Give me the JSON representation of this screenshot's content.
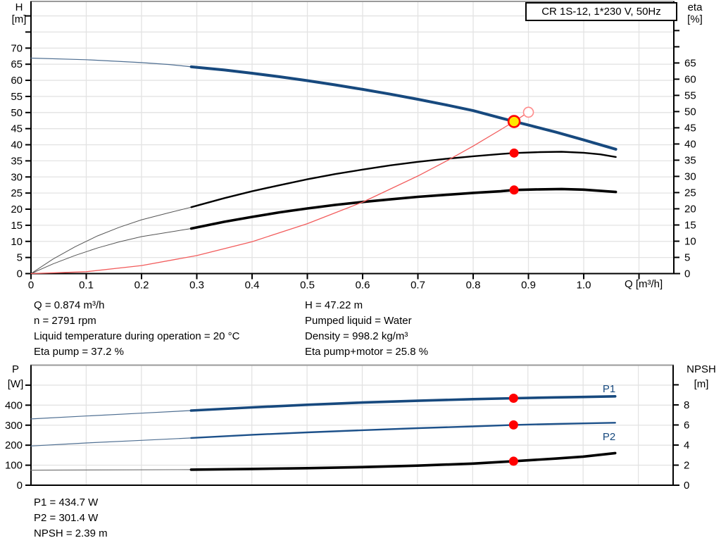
{
  "title_box": "CR 1S-12, 1*230 V, 50Hz",
  "axes_labels": {
    "top_left_title": "H",
    "top_left_unit": "[m]",
    "top_right_title": "eta",
    "top_right_unit": "[%]",
    "x_unit": "Q [m³/h]",
    "bottom_left_title": "P",
    "bottom_left_unit": "[W]",
    "bottom_right_title": "NPSH",
    "bottom_right_unit": "[m]"
  },
  "annotations": {
    "duty_left": [
      "Q = 0.874 m³/h",
      "n = 2791 rpm",
      "Liquid temperature during operation = 20 °C",
      "Eta pump = 37.2 %"
    ],
    "duty_right": [
      "H = 47.22 m",
      "Pumped liquid = Water",
      "Density = 998.2 kg/m³",
      "Eta pump+motor = 25.8 %"
    ],
    "power_npsh": [
      "P1 = 434.7 W",
      "P2 = 301.4 W",
      "NPSH = 2.39 m"
    ]
  },
  "colors": {
    "curve_blue": "#17497E",
    "curve_blue_thin": "#4F6F92",
    "curve_black": "#000000",
    "system_red": "#F25C5C",
    "marker_red": "#FF0000",
    "duty_yellow": "#FFE600",
    "grid": "#E3E3E3",
    "border_gray": "#9A9A9A"
  },
  "chart_data": [
    {
      "type": "line",
      "title": "CR 1S-12, 1*230 V, 50Hz",
      "xlabel": "Q [m³/h]",
      "ylabel_left": "H [m]",
      "ylabel_right": "eta [%]",
      "x_range": [
        0,
        1.163
      ],
      "y_left_range": [
        0,
        84.5
      ],
      "y_right_range": [
        0,
        84.0
      ],
      "x_ticks": [
        [
          0,
          "0"
        ],
        [
          0.1,
          "0.1"
        ],
        [
          0.2,
          "0.2"
        ],
        [
          0.3,
          "0.3"
        ],
        [
          0.4,
          "0.4"
        ],
        [
          0.5,
          "0.5"
        ],
        [
          0.6,
          "0.6"
        ],
        [
          0.7,
          "0.7"
        ],
        [
          0.8,
          "0.8"
        ],
        [
          0.9,
          "0.9"
        ],
        [
          1.0,
          "1.0"
        ],
        [
          1.1,
          ""
        ]
      ],
      "left_ticks": [
        [
          0,
          "0"
        ],
        [
          5,
          "5"
        ],
        [
          10,
          "10"
        ],
        [
          15,
          "15"
        ],
        [
          20,
          "20"
        ],
        [
          25,
          "25"
        ],
        [
          30,
          "30"
        ],
        [
          35,
          "35"
        ],
        [
          40,
          "40"
        ],
        [
          45,
          "45"
        ],
        [
          50,
          "50"
        ],
        [
          55,
          "55"
        ],
        [
          60,
          "60"
        ],
        [
          65,
          "65"
        ],
        [
          70,
          "70"
        ],
        [
          75,
          ""
        ],
        [
          80,
          ""
        ]
      ],
      "right_ticks": [
        [
          0,
          "0"
        ],
        [
          5,
          "5"
        ],
        [
          10,
          "10"
        ],
        [
          15,
          "15"
        ],
        [
          20,
          "20"
        ],
        [
          25,
          "25"
        ],
        [
          30,
          "30"
        ],
        [
          35,
          "35"
        ],
        [
          40,
          "40"
        ],
        [
          45,
          "45"
        ],
        [
          50,
          "50"
        ],
        [
          55,
          "55"
        ],
        [
          60,
          "60"
        ],
        [
          65,
          "65"
        ],
        [
          70,
          ""
        ],
        [
          75,
          ""
        ]
      ],
      "grid_x": [
        0.1,
        0.2,
        0.3,
        0.4,
        0.5,
        0.6,
        0.7,
        0.8,
        0.9,
        1.0,
        1.1
      ],
      "grid_y": [
        5,
        10,
        15,
        20,
        25,
        30,
        35,
        40,
        45,
        50,
        55,
        60,
        65,
        70,
        75,
        80
      ],
      "series": [
        {
          "name": "head-curve-extension",
          "axis": "left",
          "color": "#4F6F92",
          "width": 1.2,
          "points": [
            [
              0,
              66.9
            ],
            [
              0.1,
              66.4
            ],
            [
              0.2,
              65.5
            ],
            [
              0.25,
              64.9
            ],
            [
              0.29,
              64.2
            ]
          ]
        },
        {
          "name": "head-curve",
          "axis": "left",
          "color": "#17497E",
          "width": 4,
          "points": [
            [
              0.29,
              64.2
            ],
            [
              0.35,
              63.2
            ],
            [
              0.4,
              62.2
            ],
            [
              0.45,
              61.1
            ],
            [
              0.5,
              59.9
            ],
            [
              0.55,
              58.6
            ],
            [
              0.6,
              57.2
            ],
            [
              0.65,
              55.7
            ],
            [
              0.7,
              54.1
            ],
            [
              0.75,
              52.4
            ],
            [
              0.8,
              50.6
            ],
            [
              0.85,
              48.3
            ],
            [
              0.874,
              47.22
            ],
            [
              0.9,
              46.1
            ],
            [
              0.95,
              43.9
            ],
            [
              1.0,
              41.5
            ],
            [
              1.058,
              38.6
            ]
          ]
        },
        {
          "name": "eta-pump-extension",
          "axis": "right",
          "color": "#555555",
          "width": 1,
          "points": [
            [
              0,
              0
            ],
            [
              0.04,
              4.5
            ],
            [
              0.08,
              8.3
            ],
            [
              0.12,
              11.6
            ],
            [
              0.16,
              14.3
            ],
            [
              0.2,
              16.6
            ],
            [
              0.25,
              18.8
            ],
            [
              0.29,
              20.5
            ]
          ]
        },
        {
          "name": "eta-pump-curve",
          "axis": "right",
          "color": "#000000",
          "width": 2.4,
          "points": [
            [
              0.29,
              20.5
            ],
            [
              0.35,
              23.3
            ],
            [
              0.4,
              25.4
            ],
            [
              0.45,
              27.3
            ],
            [
              0.5,
              29.1
            ],
            [
              0.55,
              30.7
            ],
            [
              0.6,
              32.1
            ],
            [
              0.65,
              33.4
            ],
            [
              0.7,
              34.5
            ],
            [
              0.75,
              35.4
            ],
            [
              0.8,
              36.2
            ],
            [
              0.85,
              36.9
            ],
            [
              0.874,
              37.2
            ],
            [
              0.92,
              37.5
            ],
            [
              0.96,
              37.6
            ],
            [
              1.0,
              37.3
            ],
            [
              1.03,
              36.8
            ],
            [
              1.058,
              36.0
            ]
          ]
        },
        {
          "name": "eta-pump-motor-extension",
          "axis": "right",
          "color": "#555555",
          "width": 1,
          "points": [
            [
              0,
              0
            ],
            [
              0.04,
              3.0
            ],
            [
              0.08,
              5.6
            ],
            [
              0.12,
              7.9
            ],
            [
              0.16,
              9.8
            ],
            [
              0.2,
              11.4
            ],
            [
              0.25,
              12.8
            ],
            [
              0.29,
              13.9
            ]
          ]
        },
        {
          "name": "eta-pump-motor-curve",
          "axis": "right",
          "color": "#000000",
          "width": 3.6,
          "points": [
            [
              0.29,
              13.9
            ],
            [
              0.35,
              16.0
            ],
            [
              0.4,
              17.5
            ],
            [
              0.45,
              18.9
            ],
            [
              0.5,
              20.1
            ],
            [
              0.55,
              21.2
            ],
            [
              0.6,
              22.1
            ],
            [
              0.65,
              22.9
            ],
            [
              0.7,
              23.7
            ],
            [
              0.75,
              24.3
            ],
            [
              0.8,
              24.9
            ],
            [
              0.85,
              25.4
            ],
            [
              0.874,
              25.8
            ],
            [
              0.92,
              26.0
            ],
            [
              0.96,
              26.1
            ],
            [
              1.0,
              25.9
            ],
            [
              1.058,
              25.2
            ]
          ]
        },
        {
          "name": "system-curve",
          "axis": "left",
          "color": "#F25C5C",
          "width": 1.3,
          "points": [
            [
              0,
              0
            ],
            [
              0.1,
              0.6
            ],
            [
              0.2,
              2.5
            ],
            [
              0.3,
              5.6
            ],
            [
              0.4,
              9.9
            ],
            [
              0.5,
              15.5
            ],
            [
              0.6,
              22.2
            ],
            [
              0.7,
              30.3
            ],
            [
              0.75,
              34.8
            ],
            [
              0.8,
              39.6
            ],
            [
              0.85,
              44.7
            ],
            [
              0.874,
              47.22
            ],
            [
              0.9,
              50.1
            ]
          ]
        }
      ],
      "labels": [],
      "markers": [
        {
          "name": "open-duty-marker",
          "axis": "left",
          "x": 0.9,
          "y": 50.1,
          "r": 7,
          "fill": "#FFFFFF",
          "stroke": "#FF8A8A",
          "sw": 1.6
        },
        {
          "name": "duty-point-marker",
          "axis": "left",
          "x": 0.874,
          "y": 47.22,
          "r": 8,
          "fill": "#FFE600",
          "stroke": "#FF0000",
          "sw": 2.6
        },
        {
          "name": "eta-pump-marker",
          "axis": "right",
          "x": 0.874,
          "y": 37.2,
          "r": 6.5,
          "fill": "#FF0000",
          "stroke": "none",
          "sw": 0
        },
        {
          "name": "eta-pump-motor-marker",
          "axis": "right",
          "x": 0.874,
          "y": 25.8,
          "r": 6.5,
          "fill": "#FF0000",
          "stroke": "none",
          "sw": 0
        }
      ]
    },
    {
      "type": "line",
      "title": "",
      "xlabel": "",
      "ylabel_left": "P [W]",
      "ylabel_right": "NPSH [m]",
      "x_range": [
        0,
        1.163
      ],
      "y_left_range": [
        0,
        600
      ],
      "y_right_range": [
        0,
        11.96
      ],
      "x_ticks": [],
      "left_ticks": [
        [
          0,
          "0"
        ],
        [
          100,
          "100"
        ],
        [
          200,
          "200"
        ],
        [
          300,
          "300"
        ],
        [
          400,
          "400"
        ],
        [
          500,
          ""
        ]
      ],
      "right_ticks": [
        [
          0,
          "0"
        ],
        [
          2,
          "2"
        ],
        [
          4,
          "4"
        ],
        [
          6,
          "6"
        ],
        [
          8,
          "8"
        ],
        [
          10,
          ""
        ]
      ],
      "grid_x": [
        0.1,
        0.2,
        0.3,
        0.4,
        0.5,
        0.6,
        0.7,
        0.8,
        0.9,
        1.0,
        1.1
      ],
      "grid_y": [
        100,
        200,
        300,
        400,
        500
      ],
      "series": [
        {
          "name": "p1-extension",
          "axis": "left",
          "color": "#4F6F92",
          "width": 1.2,
          "points": [
            [
              0,
              331
            ],
            [
              0.1,
              346
            ],
            [
              0.2,
              360
            ],
            [
              0.29,
              373
            ]
          ]
        },
        {
          "name": "p1-curve",
          "axis": "left",
          "color": "#17497E",
          "width": 3.6,
          "points": [
            [
              0.29,
              373
            ],
            [
              0.4,
              389
            ],
            [
              0.5,
              402
            ],
            [
              0.6,
              413
            ],
            [
              0.7,
              422
            ],
            [
              0.8,
              430
            ],
            [
              0.874,
              434.7
            ],
            [
              0.95,
              439
            ],
            [
              1.0,
              441
            ],
            [
              1.058,
              444
            ]
          ]
        },
        {
          "name": "p2-extension",
          "axis": "left",
          "color": "#4F6F92",
          "width": 1.2,
          "points": [
            [
              0,
              196
            ],
            [
              0.1,
              211
            ],
            [
              0.2,
              224
            ],
            [
              0.29,
              236
            ]
          ]
        },
        {
          "name": "p2-curve",
          "axis": "left",
          "color": "#1D518A",
          "width": 2.4,
          "points": [
            [
              0.29,
              236
            ],
            [
              0.4,
              252
            ],
            [
              0.5,
              264
            ],
            [
              0.6,
              275
            ],
            [
              0.7,
              285
            ],
            [
              0.8,
              294
            ],
            [
              0.874,
              301.4
            ],
            [
              0.95,
              306
            ],
            [
              1.0,
              309
            ],
            [
              1.058,
              312
            ]
          ]
        },
        {
          "name": "npsh-extension",
          "axis": "right",
          "color": "#777777",
          "width": 1.2,
          "points": [
            [
              0,
              1.5
            ],
            [
              0.29,
              1.55
            ]
          ]
        },
        {
          "name": "npsh-curve",
          "axis": "right",
          "color": "#000000",
          "width": 3.6,
          "points": [
            [
              0.29,
              1.55
            ],
            [
              0.4,
              1.62
            ],
            [
              0.5,
              1.7
            ],
            [
              0.6,
              1.8
            ],
            [
              0.7,
              1.95
            ],
            [
              0.8,
              2.15
            ],
            [
              0.874,
              2.39
            ],
            [
              0.95,
              2.65
            ],
            [
              1.0,
              2.85
            ],
            [
              1.058,
              3.2
            ]
          ]
        }
      ],
      "labels": [
        {
          "t": "P1",
          "x": 1.047,
          "y": 465,
          "axis": "left",
          "color": "#17497E"
        },
        {
          "t": "P2",
          "x": 1.047,
          "y": 225,
          "axis": "left",
          "color": "#17497E"
        }
      ],
      "markers": [
        {
          "name": "p1-marker",
          "axis": "left",
          "x": 0.874,
          "y": 434.7,
          "r": 6.5,
          "fill": "#FF0000",
          "stroke": "none",
          "sw": 0
        },
        {
          "name": "p2-marker",
          "axis": "left",
          "x": 0.874,
          "y": 301.4,
          "r": 6.5,
          "fill": "#FF0000",
          "stroke": "none",
          "sw": 0
        },
        {
          "name": "npsh-marker",
          "axis": "right",
          "x": 0.874,
          "y": 2.39,
          "r": 6.5,
          "fill": "#FF0000",
          "stroke": "none",
          "sw": 0
        }
      ]
    }
  ]
}
